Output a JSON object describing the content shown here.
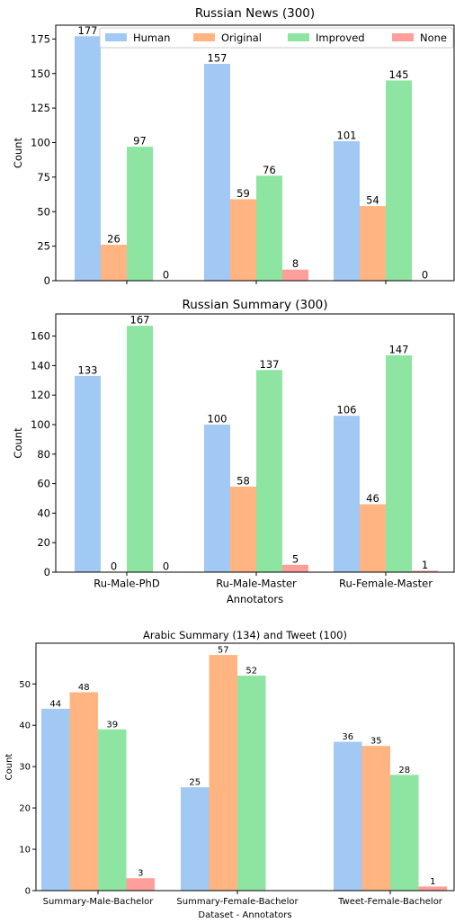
{
  "colors": {
    "Human": "#a1c9f4",
    "Original": "#ffb482",
    "Improved": "#8de5a1",
    "None": "#ff9f9b"
  },
  "chart_data": [
    {
      "type": "bar",
      "title": "Russian News (300)",
      "xlabel": "",
      "ylabel": "Count",
      "ylim": [
        0,
        185
      ],
      "yticks": [
        0,
        25,
        50,
        75,
        100,
        125,
        150,
        175
      ],
      "categories": [
        "Ru-Male-PhD",
        "Ru-Male-Master",
        "Ru-Female-Master"
      ],
      "show_xticklabels": false,
      "legend": "top",
      "series": [
        {
          "name": "Human",
          "values": [
            177,
            157,
            101
          ]
        },
        {
          "name": "Original",
          "values": [
            26,
            59,
            54
          ]
        },
        {
          "name": "Improved",
          "values": [
            97,
            76,
            145
          ]
        },
        {
          "name": "None",
          "values": [
            0,
            8,
            0
          ]
        }
      ]
    },
    {
      "type": "bar",
      "title": "Russian Summary (300)",
      "xlabel": "Annotators",
      "ylabel": "Count",
      "ylim": [
        0,
        175
      ],
      "yticks": [
        0,
        20,
        40,
        60,
        80,
        100,
        120,
        140,
        160
      ],
      "categories": [
        "Ru-Male-PhD",
        "Ru-Male-Master",
        "Ru-Female-Master"
      ],
      "show_xticklabels": true,
      "series": [
        {
          "name": "Human",
          "values": [
            133,
            100,
            106
          ]
        },
        {
          "name": "Original",
          "values": [
            0,
            58,
            46
          ]
        },
        {
          "name": "Improved",
          "values": [
            167,
            137,
            147
          ]
        },
        {
          "name": "None",
          "values": [
            0,
            5,
            1
          ]
        }
      ]
    },
    {
      "type": "bar",
      "title": "Arabic Summary (134) and Tweet (100)",
      "xlabel": "Dataset - Annotators",
      "ylabel": "Count",
      "ylim": [
        0,
        59.85
      ],
      "yticks": [
        0,
        10,
        20,
        30,
        40,
        50
      ],
      "categories": [
        "Summary-Male-Bachelor",
        "Summary-Female-Bachelor",
        "Tweet-Female-Bachelor"
      ],
      "show_xticklabels": true,
      "series": [
        {
          "name": "Human",
          "values": [
            44,
            25,
            36
          ]
        },
        {
          "name": "Original",
          "values": [
            48,
            57,
            35
          ]
        },
        {
          "name": "Improved",
          "values": [
            39,
            52,
            28
          ]
        },
        {
          "name": "None",
          "values": [
            3,
            null,
            1
          ]
        }
      ]
    }
  ]
}
